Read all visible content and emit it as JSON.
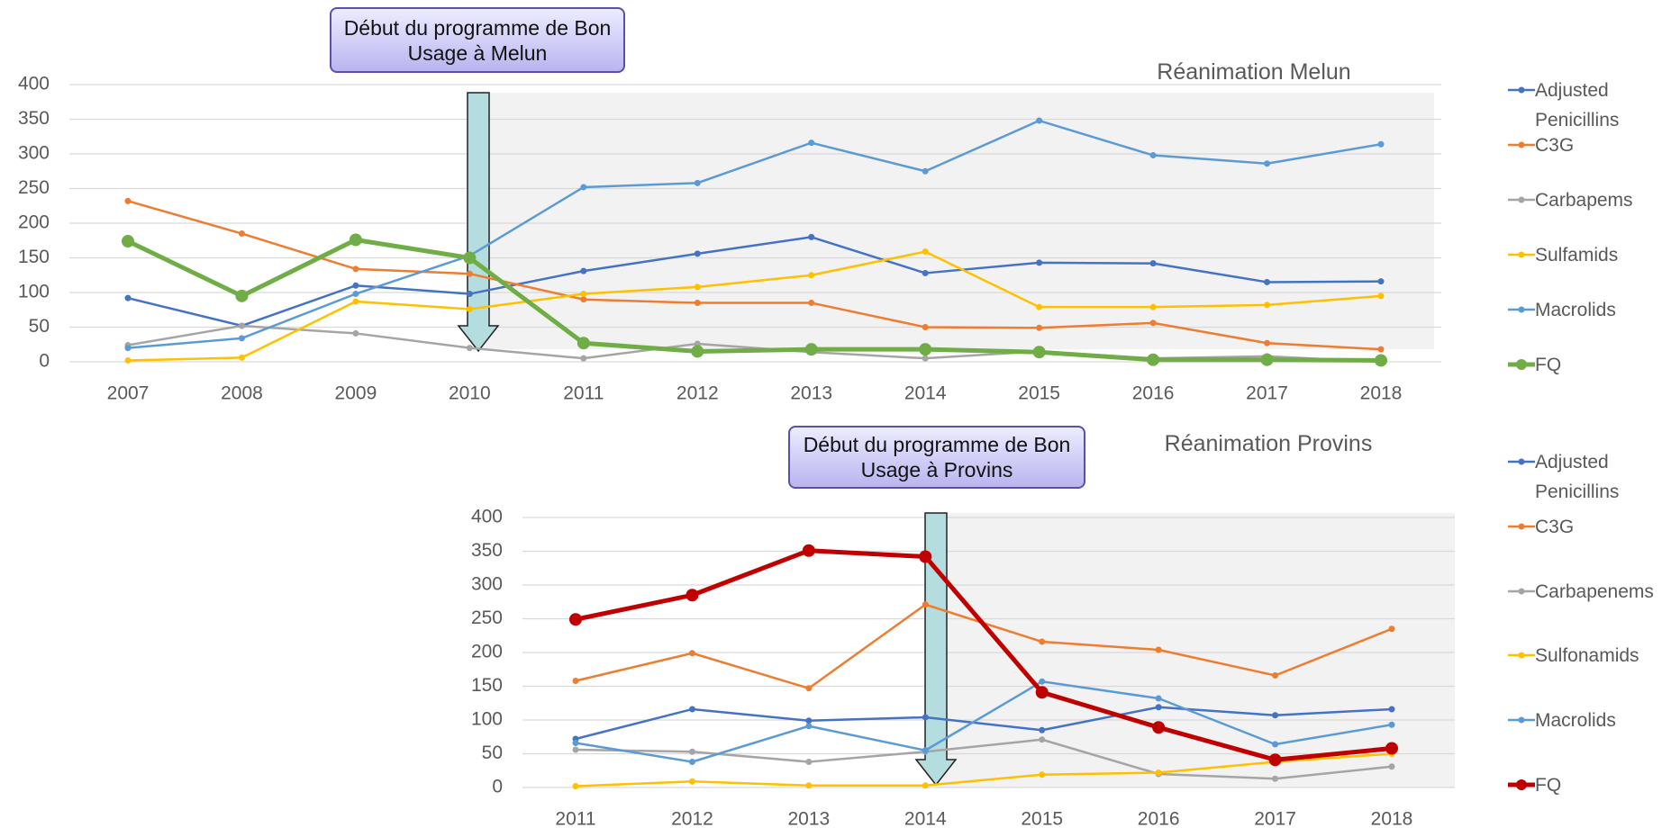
{
  "chart_data": [
    {
      "type": "line",
      "title": "Réanimation Melun",
      "annotation": "Début du programme de Bon Usage à Melun",
      "categories": [
        "2007",
        "2008",
        "2009",
        "2010",
        "2011",
        "2012",
        "2013",
        "2014",
        "2015",
        "2016",
        "2017",
        "2018"
      ],
      "ylim": [
        0,
        400
      ],
      "yticks": [
        0,
        50,
        100,
        150,
        200,
        250,
        300,
        350,
        400
      ],
      "grid": true,
      "series": [
        {
          "name": "Adjusted Penicillins",
          "color": "#4472c4",
          "values": [
            92,
            52,
            110,
            98,
            131,
            156,
            180,
            128,
            143,
            142,
            115,
            116
          ]
        },
        {
          "name": "C3G",
          "color": "#ed7d31",
          "values": [
            232,
            185,
            134,
            127,
            90,
            85,
            85,
            50,
            49,
            56,
            27,
            18
          ]
        },
        {
          "name": "Carbapems",
          "color": "#a5a5a5",
          "values": [
            24,
            52,
            41,
            20,
            5,
            26,
            14,
            5,
            15,
            5,
            8,
            0
          ]
        },
        {
          "name": "Sulfamids",
          "color": "#ffc000",
          "values": [
            2,
            6,
            87,
            76,
            98,
            108,
            125,
            159,
            79,
            79,
            82,
            95
          ]
        },
        {
          "name": "Macrolids",
          "color": "#5b9bd5",
          "values": [
            20,
            34,
            98,
            153,
            252,
            258,
            316,
            275,
            348,
            298,
            286,
            314
          ]
        },
        {
          "name": "FQ",
          "color": "#70ad47",
          "values": [
            174,
            95,
            176,
            150,
            27,
            15,
            18,
            18,
            14,
            3,
            3,
            2
          ]
        }
      ]
    },
    {
      "type": "line",
      "title": "Réanimation Provins",
      "annotation": "Début du programme de Bon Usage à Provins",
      "categories": [
        "2011",
        "2012",
        "2013",
        "2014",
        "2015",
        "2016",
        "2017",
        "2018"
      ],
      "ylim": [
        0,
        400
      ],
      "yticks": [
        0,
        50,
        100,
        150,
        200,
        250,
        300,
        350,
        400
      ],
      "grid": true,
      "series": [
        {
          "name": "Adjusted Penicillins",
          "color": "#4472c4",
          "values": [
            72,
            116,
            99,
            104,
            85,
            119,
            107,
            116
          ]
        },
        {
          "name": "C3G",
          "color": "#ed7d31",
          "values": [
            158,
            199,
            147,
            271,
            216,
            204,
            166,
            235
          ]
        },
        {
          "name": "Carbapenems",
          "color": "#a5a5a5",
          "values": [
            56,
            53,
            38,
            53,
            71,
            20,
            13,
            31
          ]
        },
        {
          "name": "Sulfonamids",
          "color": "#ffc000",
          "values": [
            2,
            9,
            3,
            3,
            19,
            22,
            38,
            50
          ]
        },
        {
          "name": "Macrolids",
          "color": "#5b9bd5",
          "values": [
            66,
            38,
            91,
            55,
            157,
            132,
            64,
            93
          ]
        },
        {
          "name": "FQ",
          "color": "#c00000",
          "values": [
            249,
            285,
            351,
            342,
            141,
            89,
            41,
            58
          ]
        }
      ]
    }
  ]
}
